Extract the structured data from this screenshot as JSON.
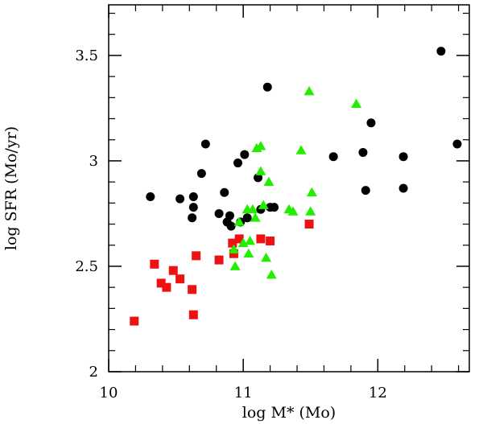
{
  "chart_data": {
    "type": "scatter",
    "title": "",
    "xlabel": "log M* (Mo)",
    "ylabel": "log SFR (Mo/yr)",
    "xlim": [
      10.0,
      12.68
    ],
    "ylim": [
      2.0,
      3.74
    ],
    "xticks": [
      10,
      11,
      12
    ],
    "xtick_labels": [
      "10",
      "11",
      "12"
    ],
    "yticks": [
      2.0,
      2.5,
      3.0,
      3.5
    ],
    "ytick_labels": [
      "2",
      "2.5",
      "3",
      "3.5"
    ],
    "grid": false,
    "legend": "none",
    "series": [
      {
        "marker": "circle",
        "color": "#000000",
        "points": [
          [
            10.31,
            2.83
          ],
          [
            10.53,
            2.82
          ],
          [
            10.63,
            2.83
          ],
          [
            10.63,
            2.78
          ],
          [
            10.62,
            2.73
          ],
          [
            10.72,
            3.08
          ],
          [
            10.69,
            2.94
          ],
          [
            10.82,
            2.75
          ],
          [
            10.86,
            2.85
          ],
          [
            10.88,
            2.71
          ],
          [
            10.9,
            2.74
          ],
          [
            10.91,
            2.69
          ],
          [
            10.96,
            2.99
          ],
          [
            10.98,
            2.71
          ],
          [
            11.01,
            3.03
          ],
          [
            11.03,
            2.73
          ],
          [
            11.11,
            2.92
          ],
          [
            11.13,
            2.77
          ],
          [
            11.18,
            3.35
          ],
          [
            11.2,
            2.78
          ],
          [
            11.23,
            2.78
          ],
          [
            11.67,
            3.02
          ],
          [
            11.89,
            3.04
          ],
          [
            11.91,
            2.86
          ],
          [
            11.95,
            3.18
          ],
          [
            12.19,
            3.02
          ],
          [
            12.19,
            2.87
          ],
          [
            12.47,
            3.52
          ],
          [
            12.59,
            3.08
          ]
        ]
      },
      {
        "marker": "square",
        "color": "#ee1111",
        "points": [
          [
            10.19,
            2.24
          ],
          [
            10.34,
            2.51
          ],
          [
            10.39,
            2.42
          ],
          [
            10.43,
            2.4
          ],
          [
            10.48,
            2.48
          ],
          [
            10.53,
            2.44
          ],
          [
            10.62,
            2.39
          ],
          [
            10.63,
            2.27
          ],
          [
            10.65,
            2.55
          ],
          [
            10.82,
            2.53
          ],
          [
            10.92,
            2.61
          ],
          [
            10.97,
            2.63
          ],
          [
            10.93,
            2.56
          ],
          [
            11.13,
            2.63
          ],
          [
            11.2,
            2.62
          ],
          [
            11.49,
            2.7
          ]
        ]
      },
      {
        "marker": "triangle",
        "color": "#22ee00",
        "points": [
          [
            10.94,
            2.5
          ],
          [
            10.93,
            2.58
          ],
          [
            10.97,
            2.71
          ],
          [
            11.0,
            2.61
          ],
          [
            11.03,
            2.77
          ],
          [
            11.04,
            2.56
          ],
          [
            11.05,
            2.62
          ],
          [
            11.07,
            2.77
          ],
          [
            11.09,
            2.73
          ],
          [
            11.1,
            3.06
          ],
          [
            11.13,
            3.07
          ],
          [
            11.13,
            2.95
          ],
          [
            11.15,
            2.79
          ],
          [
            11.17,
            2.54
          ],
          [
            11.19,
            2.9
          ],
          [
            11.21,
            2.46
          ],
          [
            11.34,
            2.77
          ],
          [
            11.37,
            2.76
          ],
          [
            11.43,
            3.05
          ],
          [
            11.49,
            3.33
          ],
          [
            11.5,
            2.76
          ],
          [
            11.51,
            2.85
          ],
          [
            11.84,
            3.27
          ]
        ]
      }
    ]
  }
}
